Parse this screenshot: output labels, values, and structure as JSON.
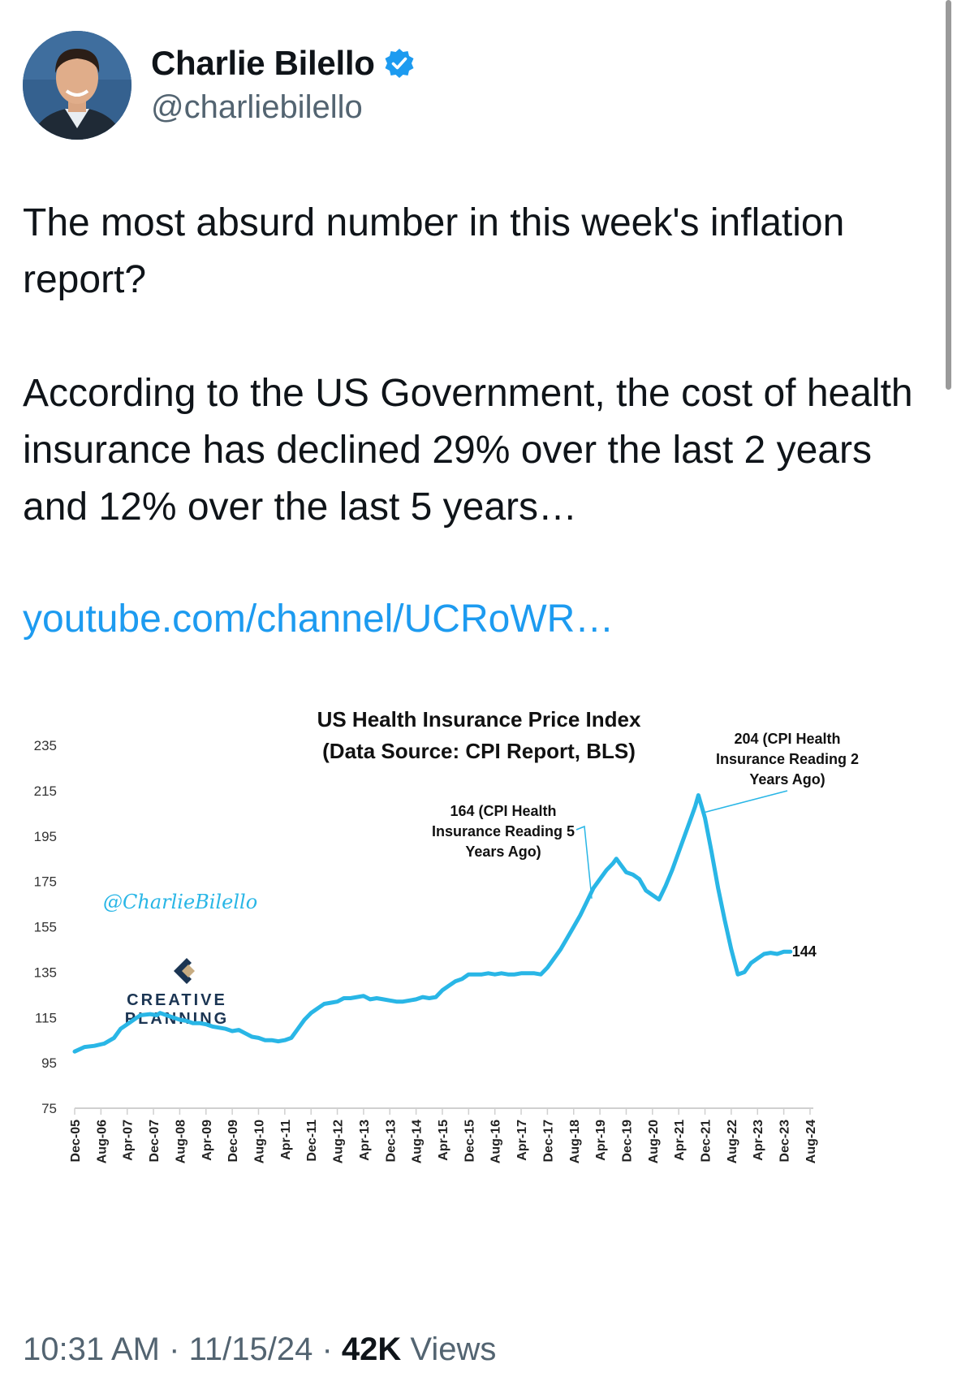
{
  "author": {
    "name": "Charlie Bilello",
    "handle": "@charliebilello",
    "verified_color": "#1d9bf0"
  },
  "tweet": {
    "paragraph1": "The most absurd number in this week's inflation report?",
    "paragraph2": "According to the US Government, the cost of health insurance has declined 29% over the last 2 years and 12% over the last 5 years…",
    "link_text": "youtube.com/channel/UCRoWR…",
    "link_color": "#1d9bf0"
  },
  "chart_data": {
    "type": "line",
    "title": "US Health Insurance Price Index",
    "subtitle": "(Data Source: CPI Report, BLS)",
    "watermark": "@CharlieBilello",
    "logo_text": [
      "CREATIVE",
      "PLANNING"
    ],
    "line_color": "#29b6e6",
    "ylim": [
      75,
      235
    ],
    "yticks": [
      75,
      95,
      115,
      135,
      155,
      175,
      195,
      215,
      235
    ],
    "xtick_labels": [
      "Dec-05",
      "Aug-06",
      "Apr-07",
      "Dec-07",
      "Aug-08",
      "Apr-09",
      "Dec-09",
      "Aug-10",
      "Apr-11",
      "Dec-11",
      "Aug-12",
      "Apr-13",
      "Dec-13",
      "Aug-14",
      "Apr-15",
      "Dec-15",
      "Aug-16",
      "Apr-17",
      "Dec-17",
      "Aug-18",
      "Apr-19",
      "Dec-19",
      "Aug-20",
      "Apr-21",
      "Dec-21",
      "Aug-22",
      "Apr-23",
      "Dec-23",
      "Aug-24"
    ],
    "xlim": [
      0,
      225
    ],
    "series": [
      {
        "points": [
          [
            0,
            100
          ],
          [
            3,
            102
          ],
          [
            6,
            102.5
          ],
          [
            9,
            103.5
          ],
          [
            12,
            106
          ],
          [
            14,
            110
          ],
          [
            17,
            113
          ],
          [
            20,
            116
          ],
          [
            23,
            116.5
          ],
          [
            25,
            116
          ],
          [
            26,
            117
          ],
          [
            28,
            116
          ],
          [
            30,
            115
          ],
          [
            32,
            114
          ],
          [
            34,
            113.5
          ],
          [
            36,
            112.5
          ],
          [
            38,
            112.5
          ],
          [
            40,
            112
          ],
          [
            42,
            111
          ],
          [
            44,
            110.5
          ],
          [
            46,
            110
          ],
          [
            48,
            109
          ],
          [
            50,
            109.5
          ],
          [
            52,
            108
          ],
          [
            54,
            106.5
          ],
          [
            56,
            106
          ],
          [
            58,
            105
          ],
          [
            60,
            105
          ],
          [
            62,
            104.5
          ],
          [
            64,
            105
          ],
          [
            66,
            106
          ],
          [
            68,
            110
          ],
          [
            70,
            114
          ],
          [
            72,
            117
          ],
          [
            74,
            119
          ],
          [
            76,
            121
          ],
          [
            78,
            121.5
          ],
          [
            80,
            122
          ],
          [
            82,
            123.5
          ],
          [
            84,
            123.5
          ],
          [
            86,
            124
          ],
          [
            88,
            124.5
          ],
          [
            90,
            123
          ],
          [
            92,
            123.5
          ],
          [
            94,
            123
          ],
          [
            96,
            122.5
          ],
          [
            98,
            122
          ],
          [
            100,
            122
          ],
          [
            102,
            122.5
          ],
          [
            104,
            123
          ],
          [
            106,
            124
          ],
          [
            108,
            123.5
          ],
          [
            110,
            124
          ],
          [
            112,
            127
          ],
          [
            114,
            129
          ],
          [
            116,
            131
          ],
          [
            118,
            132
          ],
          [
            120,
            134
          ],
          [
            122,
            134
          ],
          [
            124,
            134
          ],
          [
            126,
            134.5
          ],
          [
            128,
            134
          ],
          [
            130,
            134.5
          ],
          [
            132,
            134
          ],
          [
            134,
            134
          ],
          [
            136,
            134.5
          ],
          [
            138,
            134.5
          ],
          [
            140,
            134.5
          ],
          [
            142,
            134
          ],
          [
            144,
            137
          ],
          [
            146,
            141
          ],
          [
            148,
            145
          ],
          [
            150,
            150
          ],
          [
            152,
            155
          ],
          [
            154,
            160
          ],
          [
            156,
            166
          ],
          [
            158,
            172
          ],
          [
            160,
            176
          ],
          [
            162,
            180
          ],
          [
            164,
            183
          ],
          [
            165,
            185
          ],
          [
            166,
            183
          ],
          [
            168,
            179
          ],
          [
            170,
            178
          ],
          [
            172,
            176
          ],
          [
            174,
            171
          ],
          [
            176,
            169
          ],
          [
            178,
            167
          ],
          [
            180,
            173
          ],
          [
            182,
            180
          ],
          [
            184,
            188
          ],
          [
            186,
            196
          ],
          [
            188,
            204
          ],
          [
            189,
            208
          ],
          [
            190,
            213
          ],
          [
            191,
            208
          ],
          [
            192,
            203
          ],
          [
            194,
            188
          ],
          [
            196,
            172
          ],
          [
            198,
            158
          ],
          [
            200,
            145
          ],
          [
            202,
            134
          ],
          [
            204,
            135
          ],
          [
            206,
            139
          ],
          [
            208,
            141
          ],
          [
            210,
            143
          ],
          [
            212,
            143.5
          ],
          [
            214,
            143
          ],
          [
            216,
            144
          ],
          [
            218,
            144
          ]
        ]
      }
    ],
    "annotations": [
      {
        "lines": [
          "164 (CPI Health",
          "Insurance Reading 5",
          "Years Ago)"
        ],
        "x": 158,
        "y": 166
      },
      {
        "lines": [
          "204 (CPI Health",
          "Insurance Reading 2",
          "Years Ago)"
        ],
        "x": 190,
        "y": 213
      },
      {
        "lines": [
          "144"
        ],
        "x": 218,
        "y": 144
      }
    ],
    "grid": false
  },
  "footer": {
    "time": "10:31 AM",
    "date": "11/15/24",
    "separator": "·",
    "views_count": "42K",
    "views_label": "Views"
  }
}
